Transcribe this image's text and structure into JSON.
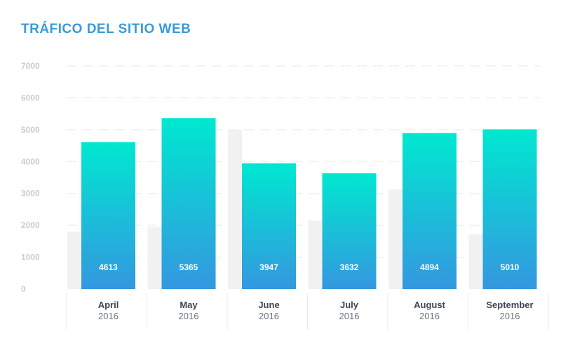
{
  "chart_data": {
    "type": "bar",
    "title": "TRÁFICO DEL SITIO WEB",
    "xlabel": "",
    "ylabel": "",
    "ylim": [
      0,
      7000
    ],
    "yticks": [
      0,
      1000,
      2000,
      3000,
      4000,
      5000,
      6000,
      7000
    ],
    "grid": true,
    "legend": "none",
    "categories": [
      {
        "month": "April",
        "year": "2016"
      },
      {
        "month": "May",
        "year": "2016"
      },
      {
        "month": "June",
        "year": "2016"
      },
      {
        "month": "July",
        "year": "2016"
      },
      {
        "month": "August",
        "year": "2016"
      },
      {
        "month": "September",
        "year": "2016"
      }
    ],
    "series": [
      {
        "values": [
          4613,
          5365,
          3947,
          3632,
          4894,
          5010
        ],
        "gradient": [
          "#00e8d0",
          "#3497e0"
        ],
        "data_labels": [
          "4613",
          "5365",
          "3947",
          "3632",
          "4894",
          "5010"
        ]
      },
      {
        "values": [
          1800,
          1950,
          5000,
          2150,
          3120,
          1720
        ],
        "color": "#f1f1f1"
      }
    ],
    "colors": {
      "title": "#3a9ad9",
      "axis_text": "#c6ccd6",
      "background_bars": "#f1f1f1"
    }
  }
}
